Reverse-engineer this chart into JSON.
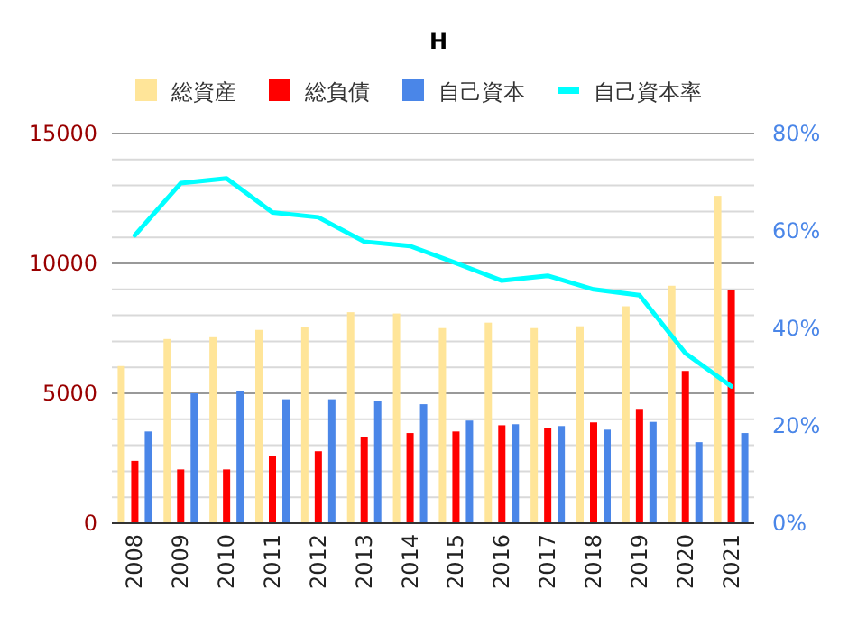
{
  "chart_data": {
    "type": "bar",
    "title": "H",
    "categories": [
      "2008",
      "2009",
      "2010",
      "2011",
      "2012",
      "2013",
      "2014",
      "2015",
      "2016",
      "2017",
      "2018",
      "2019",
      "2020",
      "2021"
    ],
    "series": [
      {
        "name": "総資産",
        "color": "#ffe599",
        "values": [
          6050,
          7090,
          7160,
          7440,
          7560,
          8120,
          8070,
          7510,
          7720,
          7510,
          7580,
          8350,
          9140,
          12600
        ]
      },
      {
        "name": "総負債",
        "color": "#ff0000",
        "values": [
          2400,
          2070,
          2070,
          2600,
          2770,
          3330,
          3470,
          3530,
          3770,
          3670,
          3880,
          4400,
          5860,
          8980
        ]
      },
      {
        "name": "自己資本",
        "color": "#4a86e8",
        "values": [
          3530,
          5000,
          5070,
          4770,
          4770,
          4720,
          4580,
          3950,
          3810,
          3740,
          3600,
          3900,
          3120,
          3470
        ]
      },
      {
        "name": "自己資本率",
        "type": "line",
        "axis": "y2",
        "color": "#00ffff",
        "values": [
          59.1,
          69.8,
          70.8,
          63.8,
          62.8,
          57.8,
          56.9,
          53.4,
          49.8,
          50.8,
          48.0,
          46.8,
          34.9,
          28.1
        ]
      }
    ],
    "ylim": [
      0,
      15000
    ],
    "yticks": [
      0,
      {
        "value": 1000,
        "label": null
      },
      {
        "value": 2000,
        "label": null
      },
      {
        "value": 3000,
        "label": null
      },
      {
        "value": 4000,
        "label": null
      },
      5000,
      {
        "value": 6000,
        "label": null
      },
      {
        "value": 7000,
        "label": null
      },
      {
        "value": 8000,
        "label": null
      },
      {
        "value": 9000,
        "label": null
      },
      10000,
      {
        "value": 11000,
        "label": null
      },
      {
        "value": 12000,
        "label": null
      },
      {
        "value": 13000,
        "label": null
      },
      {
        "value": 14000,
        "label": null
      },
      15000
    ],
    "y2lim": [
      0,
      80
    ],
    "y2ticks": [
      {
        "value": 0,
        "label": "0%"
      },
      {
        "value": 20,
        "label": "20%"
      },
      {
        "value": 40,
        "label": "40%"
      },
      {
        "value": 60,
        "label": "60%"
      },
      {
        "value": 80,
        "label": "80%"
      }
    ],
    "grid": "y",
    "legend": "top"
  }
}
